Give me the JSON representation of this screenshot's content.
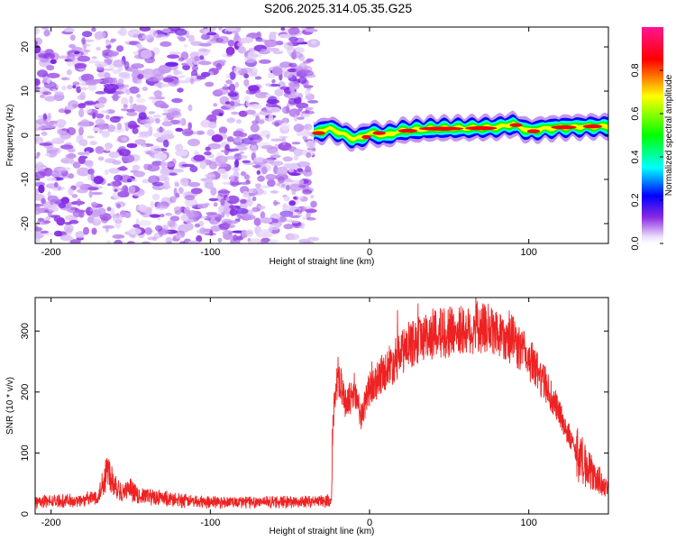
{
  "title": "S206.2025.314.05.35.G25",
  "chart_data": [
    {
      "type": "heatmap",
      "xlabel": "Height of straight line (km)",
      "ylabel": "Frequency (Hz)",
      "xlim": [
        -210,
        150
      ],
      "ylim": [
        -24.5,
        24.5
      ],
      "xticks": [
        -200,
        -100,
        0,
        100
      ],
      "yticks": [
        -20,
        -10,
        0,
        10,
        20
      ],
      "colorbar": {
        "label": "Normalized spectral amplitude",
        "range": [
          0,
          1
        ],
        "ticks": [
          0.0,
          0.2,
          0.4,
          0.6,
          0.8
        ],
        "colors": [
          "#ffffff",
          "#ece0fb",
          "#8a2be2",
          "#0000ff",
          "#00ffff",
          "#00ff00",
          "#ffff00",
          "#ff0000",
          "#ff1493"
        ]
      },
      "noise_region": {
        "x_range": [
          -210,
          -35
        ],
        "freq_range": [
          -24.5,
          24.5
        ],
        "amplitude_range": [
          0.0,
          0.15
        ]
      },
      "signal_ridge": {
        "x": [
          -35,
          -30,
          -25,
          -20,
          -15,
          -10,
          -5,
          0,
          10,
          20,
          40,
          60,
          80,
          90,
          100,
          110,
          120,
          140,
          150
        ],
        "frequency": [
          0.5,
          1.0,
          1.5,
          0.8,
          0.0,
          -0.8,
          -0.5,
          0.5,
          0.0,
          1.0,
          1.5,
          1.6,
          1.8,
          2.5,
          1.0,
          1.5,
          1.8,
          2.0,
          2.0
        ],
        "peak_amplitude": 1.0
      }
    },
    {
      "type": "line",
      "xlabel": "Height of straight line (km)",
      "ylabel": "SNR (10 * v/v)",
      "xlim": [
        -210,
        150
      ],
      "ylim": [
        0,
        355
      ],
      "xticks": [
        -200,
        -100,
        0,
        100
      ],
      "yticks": [
        0,
        100,
        200,
        300
      ],
      "series_color": "#ee2222",
      "envelope": {
        "x": [
          -210,
          -180,
          -170,
          -165,
          -160,
          -155,
          -150,
          -145,
          -140,
          -130,
          -120,
          -100,
          -80,
          -60,
          -40,
          -24,
          -23,
          -20,
          -15,
          -10,
          -5,
          0,
          10,
          20,
          30,
          40,
          50,
          60,
          70,
          80,
          90,
          100,
          110,
          120,
          130,
          140,
          150
        ],
        "snr": [
          20,
          22,
          30,
          75,
          50,
          35,
          40,
          28,
          30,
          25,
          22,
          20,
          20,
          20,
          20,
          21,
          150,
          230,
          180,
          200,
          160,
          205,
          235,
          265,
          285,
          295,
          300,
          300,
          305,
          300,
          285,
          255,
          215,
          160,
          100,
          65,
          40
        ]
      }
    }
  ]
}
